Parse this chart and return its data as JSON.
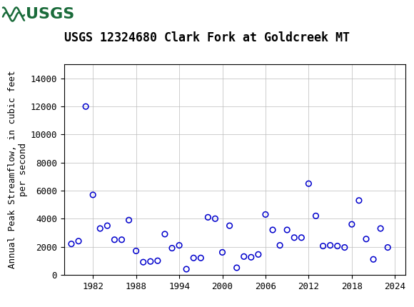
{
  "title": "USGS 12324680 Clark Fork at Goldcreek MT",
  "ylabel": "Annual Peak Streamflow, in cubic feet\nper second",
  "years": [
    1979,
    1980,
    1981,
    1982,
    1983,
    1984,
    1985,
    1986,
    1987,
    1988,
    1989,
    1990,
    1991,
    1992,
    1993,
    1994,
    1995,
    1996,
    1997,
    1998,
    1999,
    2000,
    2001,
    2002,
    2003,
    2004,
    2005,
    2006,
    2007,
    2008,
    2009,
    2010,
    2011,
    2012,
    2013,
    2014,
    2015,
    2016,
    2017,
    2018,
    2019,
    2020,
    2021,
    2022,
    2023
  ],
  "flows": [
    2200,
    2400,
    12000,
    5700,
    3300,
    3500,
    2500,
    2500,
    3900,
    1700,
    900,
    950,
    1000,
    2900,
    1900,
    2100,
    400,
    1200,
    1200,
    4100,
    4000,
    1600,
    3500,
    500,
    1300,
    1250,
    1450,
    4300,
    3200,
    2100,
    3200,
    2650,
    2650,
    6500,
    4200,
    2050,
    2100,
    2050,
    1950,
    3600,
    5300,
    2550,
    1100,
    3300,
    1950
  ],
  "marker_color": "#0000CC",
  "marker_size": 30,
  "ylim": [
    0,
    15000
  ],
  "xlim": [
    1978,
    2025.5
  ],
  "yticks": [
    0,
    2000,
    4000,
    6000,
    8000,
    10000,
    12000,
    14000
  ],
  "xticks": [
    1982,
    1988,
    1994,
    2000,
    2006,
    2012,
    2018,
    2024
  ],
  "grid_color": "#bbbbbb",
  "bg_color": "#ffffff",
  "header_bg": "#1a6b3a",
  "usgs_text_color": "#1a6b3a",
  "title_fontsize": 12,
  "tick_fontsize": 9,
  "ylabel_fontsize": 9
}
